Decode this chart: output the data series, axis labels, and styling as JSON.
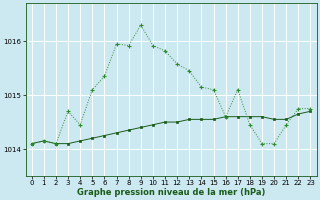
{
  "title": "Graphe pression niveau de la mer (hPa)",
  "bg_color": "#cce8f0",
  "grid_color": "#ffffff",
  "dark_green": "#1a5c1a",
  "light_green": "#2d8a2d",
  "xlim": [
    -0.5,
    23.5
  ],
  "ylim": [
    1013.5,
    1016.7
  ],
  "yticks": [
    1014,
    1015,
    1016
  ],
  "xticks": [
    0,
    1,
    2,
    3,
    4,
    5,
    6,
    7,
    8,
    9,
    10,
    11,
    12,
    13,
    14,
    15,
    16,
    17,
    18,
    19,
    20,
    21,
    22,
    23
  ],
  "series_solid_x": [
    0,
    1,
    2,
    3,
    4,
    5,
    6,
    7,
    8,
    9,
    10,
    11,
    12,
    13,
    14,
    15,
    16,
    17,
    18,
    19,
    20,
    21,
    22,
    23
  ],
  "series_solid_y": [
    1014.1,
    1014.15,
    1014.1,
    1014.1,
    1014.15,
    1014.2,
    1014.25,
    1014.3,
    1014.35,
    1014.4,
    1014.45,
    1014.5,
    1014.5,
    1014.55,
    1014.55,
    1014.55,
    1014.6,
    1014.6,
    1014.6,
    1014.6,
    1014.55,
    1014.55,
    1014.65,
    1014.7
  ],
  "series_dotted_x": [
    0,
    1,
    2,
    3,
    4,
    5,
    6,
    7,
    8,
    9,
    10,
    11,
    12,
    13,
    14,
    15,
    16,
    17,
    18,
    19,
    20,
    21,
    22,
    23
  ],
  "series_dotted_y": [
    1014.1,
    1014.15,
    1014.1,
    1014.7,
    1014.45,
    1015.1,
    1015.35,
    1015.95,
    1015.92,
    1016.3,
    1015.92,
    1015.82,
    1015.58,
    1015.45,
    1015.15,
    1015.1,
    1014.6,
    1015.1,
    1014.45,
    1014.1,
    1014.1,
    1014.45,
    1014.75,
    1014.75
  ]
}
